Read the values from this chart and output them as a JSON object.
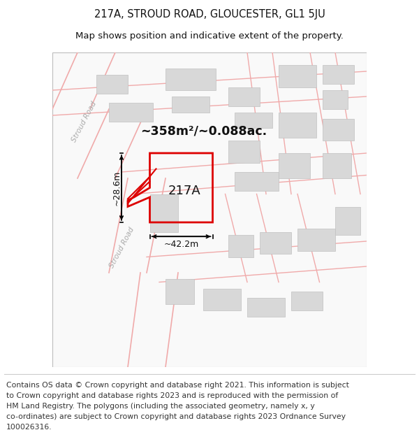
{
  "title": "217A, STROUD ROAD, GLOUCESTER, GL1 5JU",
  "subtitle": "Map shows position and indicative extent of the property.",
  "area_label": "~358m²/~0.088ac.",
  "plot_label": "217A",
  "dim_width": "~42.2m",
  "dim_height": "~28.6m",
  "bg_color": "#ffffff",
  "map_bg": "#ffffff",
  "building_color": "#d8d8d8",
  "building_edge": "#c0c0c0",
  "road_line_color": "#f0aaaa",
  "property_color": "#dd0000",
  "stroud_road_label": "Stroud Road",
  "footer_lines": [
    "Contains OS data © Crown copyright and database right 2021. This information is subject",
    "to Crown copyright and database rights 2023 and is reproduced with the permission of",
    "HM Land Registry. The polygons (including the associated geometry, namely x, y",
    "co-ordinates) are subject to Crown copyright and database rights 2023 Ordnance Survey",
    "100026316."
  ],
  "title_fontsize": 10.5,
  "subtitle_fontsize": 9.5,
  "footer_fontsize": 7.8,
  "map_border_color": "#bbbbbb"
}
